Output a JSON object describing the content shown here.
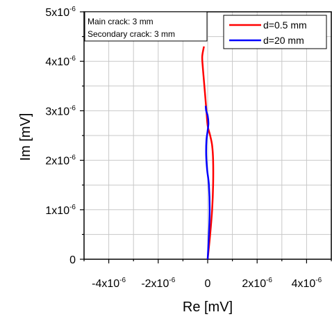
{
  "chart_data": {
    "type": "line",
    "xlabel": "Re [mV]",
    "ylabel": "Im [mV]",
    "xlim": [
      -5e-06,
      5e-06
    ],
    "ylim": [
      0,
      5e-06
    ],
    "x_ticks": [
      {
        "value": -4e-06,
        "mantissa": "-4x10",
        "exp": "-6"
      },
      {
        "value": -2e-06,
        "mantissa": "-2x10",
        "exp": "-6"
      },
      {
        "value": 0,
        "mantissa": "0",
        "exp": ""
      },
      {
        "value": 2e-06,
        "mantissa": "2x10",
        "exp": "-6"
      },
      {
        "value": 4e-06,
        "mantissa": "4x10",
        "exp": "-6"
      }
    ],
    "y_ticks": [
      {
        "value": 0,
        "mantissa": "0",
        "exp": ""
      },
      {
        "value": 1e-06,
        "mantissa": "1x10",
        "exp": "-6"
      },
      {
        "value": 2e-06,
        "mantissa": "2x10",
        "exp": "-6"
      },
      {
        "value": 3e-06,
        "mantissa": "3x10",
        "exp": "-6"
      },
      {
        "value": 4e-06,
        "mantissa": "4x10",
        "exp": "-6"
      },
      {
        "value": 5e-06,
        "mantissa": "5x10",
        "exp": "-6"
      }
    ],
    "grid": true,
    "legend_position": "top-right",
    "annotation": [
      "Main crack: 3 mm",
      "Secondary crack: 3 mm"
    ],
    "series": [
      {
        "name": "d=0.5 mm",
        "color": "#ff0000",
        "x": [
          0,
          1e-07,
          1.8e-07,
          2.2e-07,
          2.2e-07,
          1.8e-07,
          1e-07,
          0.0,
          -5e-08,
          -1e-07,
          -1.5e-07,
          -2e-07,
          -2.2e-07,
          -1.5e-07
        ],
        "y": [
          0,
          5e-07,
          1e-06,
          1.5e-06,
          2e-06,
          2.3e-06,
          2.5e-06,
          2.7e-06,
          3e-06,
          3.3e-06,
          3.6e-06,
          3.9e-06,
          4.1e-06,
          4.3e-06
        ]
      },
      {
        "name": "d=20 mm",
        "color": "#0000ff",
        "x": [
          0,
          5e-08,
          8e-08,
          5e-08,
          -2e-08,
          -6e-08,
          -5e-08,
          0.0,
          3e-08,
          0.0,
          -6e-08,
          -8e-08
        ],
        "y": [
          0,
          5e-07,
          1e-06,
          1.5e-06,
          1.8e-06,
          2.1e-06,
          2.4e-06,
          2.6e-06,
          2.75e-06,
          2.9e-06,
          3e-06,
          3.1e-06
        ]
      }
    ]
  }
}
